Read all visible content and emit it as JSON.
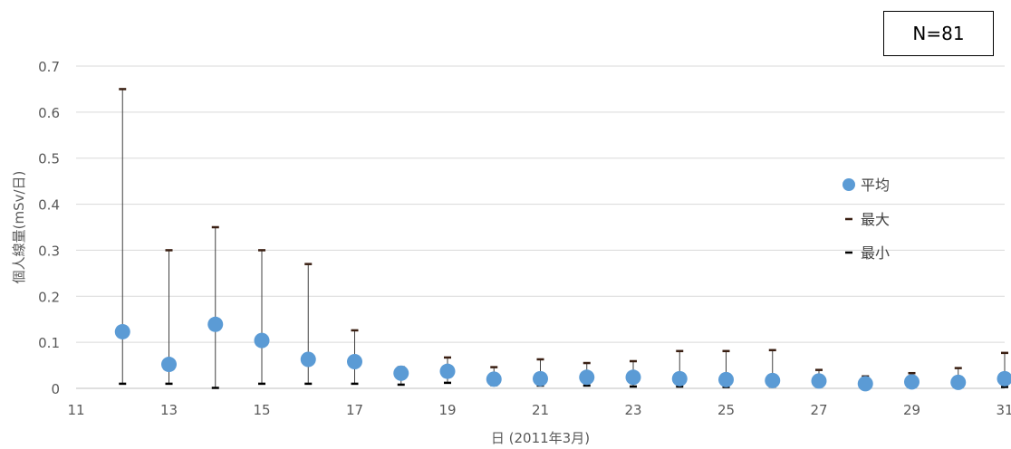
{
  "annotation": "N=81",
  "chart_data": {
    "type": "scatter",
    "xlabel": "日 (2011年3月)",
    "ylabel": "個人線量(mSv/日)",
    "xlim": [
      11,
      31
    ],
    "ylim": [
      0,
      0.7
    ],
    "x_ticks": [
      11,
      13,
      15,
      17,
      19,
      21,
      23,
      25,
      27,
      29,
      31
    ],
    "y_ticks": [
      0,
      0.1,
      0.2,
      0.3,
      0.4,
      0.5,
      0.6,
      0.7
    ],
    "y_tick_labels": [
      "0",
      "0.1",
      "0.2",
      "0.3",
      "0.4",
      "0.5",
      "0.6",
      "0.7"
    ],
    "grid": true,
    "legend_position": "right",
    "series": [
      {
        "name": "平均",
        "marker": "circle",
        "color": "#5b9bd5",
        "points": [
          {
            "x": 12,
            "y": 0.123
          },
          {
            "x": 13,
            "y": 0.052
          },
          {
            "x": 14,
            "y": 0.139
          },
          {
            "x": 15,
            "y": 0.104
          },
          {
            "x": 16,
            "y": 0.063
          },
          {
            "x": 17,
            "y": 0.058
          },
          {
            "x": 18,
            "y": 0.033
          },
          {
            "x": 19,
            "y": 0.037
          },
          {
            "x": 20,
            "y": 0.02
          },
          {
            "x": 21,
            "y": 0.021
          },
          {
            "x": 22,
            "y": 0.024
          },
          {
            "x": 23,
            "y": 0.024
          },
          {
            "x": 24,
            "y": 0.021
          },
          {
            "x": 25,
            "y": 0.019
          },
          {
            "x": 26,
            "y": 0.017
          },
          {
            "x": 27,
            "y": 0.016
          },
          {
            "x": 28,
            "y": 0.01
          },
          {
            "x": 29,
            "y": 0.014
          },
          {
            "x": 30,
            "y": 0.013
          },
          {
            "x": 31,
            "y": 0.021
          }
        ]
      },
      {
        "name": "最大",
        "marker": "dash",
        "color": "#3a1f12",
        "points": [
          {
            "x": 12,
            "y": 0.65
          },
          {
            "x": 13,
            "y": 0.3
          },
          {
            "x": 14,
            "y": 0.35
          },
          {
            "x": 15,
            "y": 0.3
          },
          {
            "x": 16,
            "y": 0.27
          },
          {
            "x": 17,
            "y": 0.126
          },
          {
            "x": 18,
            "y": 0.046
          },
          {
            "x": 19,
            "y": 0.067
          },
          {
            "x": 20,
            "y": 0.046
          },
          {
            "x": 21,
            "y": 0.063
          },
          {
            "x": 22,
            "y": 0.055
          },
          {
            "x": 23,
            "y": 0.059
          },
          {
            "x": 24,
            "y": 0.081
          },
          {
            "x": 25,
            "y": 0.081
          },
          {
            "x": 26,
            "y": 0.083
          },
          {
            "x": 27,
            "y": 0.04
          },
          {
            "x": 28,
            "y": 0.026
          },
          {
            "x": 29,
            "y": 0.033
          },
          {
            "x": 30,
            "y": 0.044
          },
          {
            "x": 31,
            "y": 0.077
          }
        ]
      },
      {
        "name": "最小",
        "marker": "dash",
        "color": "#000000",
        "points": [
          {
            "x": 12,
            "y": 0.01
          },
          {
            "x": 13,
            "y": 0.01
          },
          {
            "x": 14,
            "y": 0.001
          },
          {
            "x": 15,
            "y": 0.01
          },
          {
            "x": 16,
            "y": 0.01
          },
          {
            "x": 17,
            "y": 0.01
          },
          {
            "x": 18,
            "y": 0.008
          },
          {
            "x": 19,
            "y": 0.012
          },
          {
            "x": 20,
            "y": 0.007
          },
          {
            "x": 21,
            "y": 0.006
          },
          {
            "x": 22,
            "y": 0.006
          },
          {
            "x": 23,
            "y": 0.004
          },
          {
            "x": 24,
            "y": 0.004
          },
          {
            "x": 25,
            "y": 0.003
          },
          {
            "x": 26,
            "y": 0.004
          },
          {
            "x": 27,
            "y": 0.004
          },
          {
            "x": 28,
            "y": 0.003
          },
          {
            "x": 29,
            "y": 0.004
          },
          {
            "x": 30,
            "y": 0.004
          },
          {
            "x": 31,
            "y": 0.003
          }
        ]
      }
    ]
  }
}
